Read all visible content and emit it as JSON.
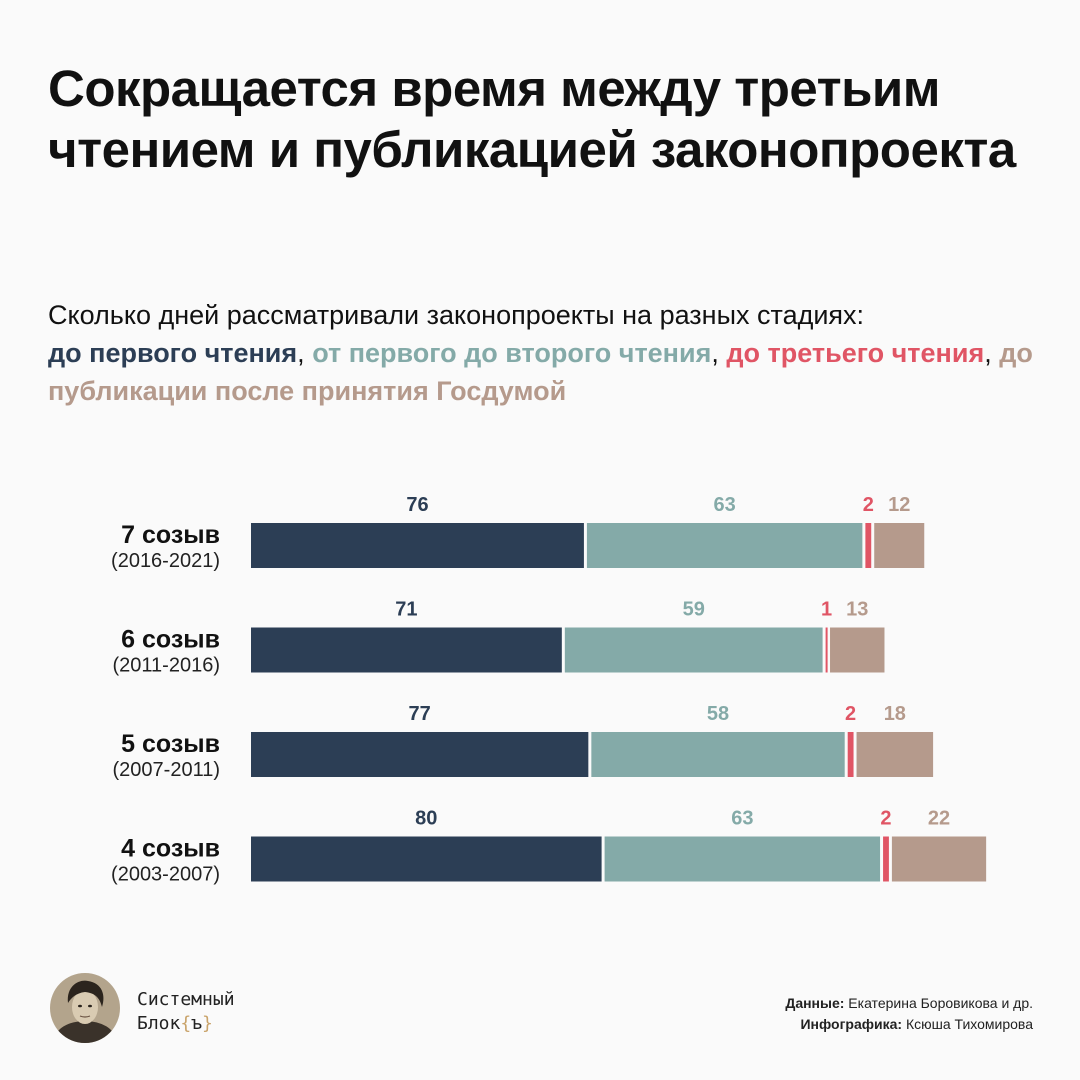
{
  "title": "Сокращается время между третьим чтением и публикацией законопроекта",
  "subtitle": {
    "intro": "Сколько дней рассматривали законопроекты на разных стадиях:",
    "legend": [
      {
        "text": "до первого чтения",
        "color": "#2c3e55"
      },
      {
        "text": "от первого до второго чтения",
        "color": "#84aaa8"
      },
      {
        "text": "до третьего чтения",
        "color": "#e05565"
      },
      {
        "text": "до публикации после принятия Госдумой",
        "color": "#b59a8c"
      }
    ],
    "separator": ","
  },
  "chart_data": {
    "type": "bar",
    "orientation": "horizontal-stacked",
    "categories": [
      "7 созыв",
      "6 созыв",
      "5 созыв",
      "4 созыв"
    ],
    "category_periods": [
      "(2016-2021)",
      "(2011-2016)",
      "(2007-2011)",
      "(2003-2007)"
    ],
    "series": [
      {
        "name": "до первого чтения",
        "color": "#2c3e55",
        "values": [
          76,
          71,
          77,
          80
        ]
      },
      {
        "name": "от первого до второго чтения",
        "color": "#84aaa8",
        "values": [
          63,
          59,
          58,
          63
        ]
      },
      {
        "name": "до третьего чтения",
        "color": "#e05565",
        "values": [
          2,
          1,
          2,
          2
        ]
      },
      {
        "name": "до публикации после принятия Госдумой",
        "color": "#b59a8c",
        "values": [
          12,
          13,
          18,
          22
        ]
      }
    ],
    "data_labels": true,
    "grid": false
  },
  "footer": {
    "brand_line1": "Системный",
    "brand_line2": "Блок",
    "brand_bracket_open": "{",
    "brand_bracket_char": "ъ",
    "brand_bracket_close": "}",
    "data_label": "Данные:",
    "data_value": " Екатерина Боровикова и др.",
    "graphics_label": "Инфографика:",
    "graphics_value": " Ксюша Тихомирова"
  }
}
